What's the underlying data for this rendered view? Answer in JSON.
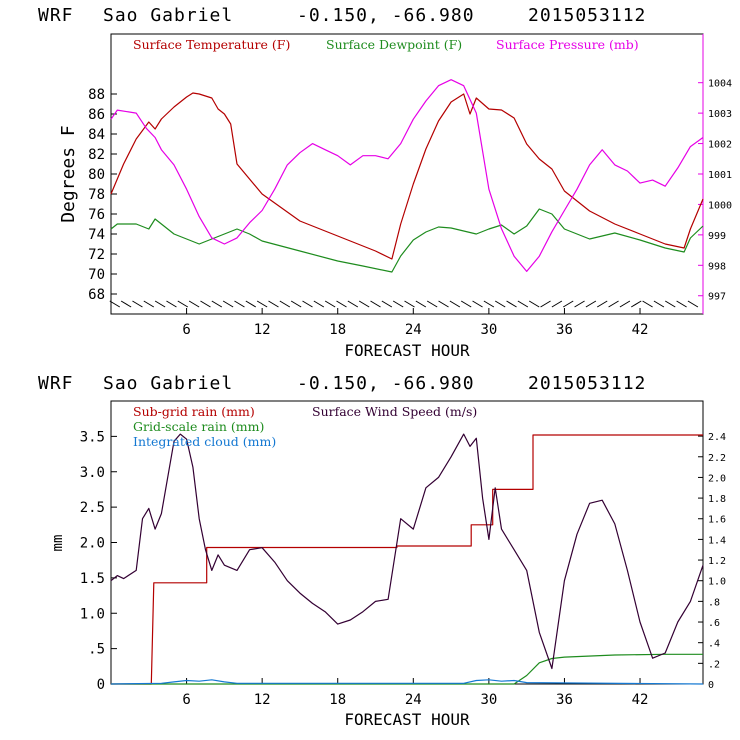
{
  "chart_data": [
    {
      "type": "line",
      "header": {
        "model": "WRF",
        "station": "Sao Gabriel",
        "coords": "-0.150, -66.980",
        "run": "2015053112"
      },
      "xlabel": "FORECAST HOUR",
      "ylabel": "Degrees F",
      "xlim": [
        0,
        47
      ],
      "ylim": [
        66,
        94
      ],
      "ylim_right": [
        996.4,
        1005.6
      ],
      "xticks": [
        "6",
        "12",
        "18",
        "24",
        "30",
        "36",
        "42"
      ],
      "yticks": [
        "68",
        "70",
        "72",
        "74",
        "76",
        "78",
        "80",
        "82",
        "84",
        "86",
        "88"
      ],
      "yticks_right": [
        "997",
        "998",
        "999",
        "1000",
        "1001",
        "1002",
        "1003",
        "1004"
      ],
      "wind_barbs": "wind barbs along bottom axis",
      "colors": {
        "temperature": "#b40000",
        "dewpoint": "#1e8c1e",
        "pressure": "#e600e6"
      },
      "series": [
        {
          "name": "Surface Temperature (F)",
          "axis": "left",
          "x": [
            0,
            1,
            2,
            3,
            3.5,
            4,
            5,
            6,
            6.5,
            7,
            8,
            8.5,
            9,
            9.5,
            10,
            12,
            15,
            18,
            21,
            22.3,
            23,
            24,
            25,
            26,
            27,
            28,
            28.5,
            29,
            30,
            31,
            32,
            33,
            34,
            35,
            36,
            38,
            40,
            42,
            44,
            45.5,
            46,
            47
          ],
          "values": [
            78,
            81,
            83.5,
            85.2,
            84.5,
            85.5,
            86.7,
            87.7,
            88.1,
            88,
            87.6,
            86.5,
            86,
            85,
            81,
            78,
            75.3,
            73.8,
            72.3,
            71.5,
            75,
            79,
            82.5,
            85.3,
            87.2,
            88,
            86,
            87.6,
            86.5,
            86.4,
            85.6,
            83,
            81.5,
            80.5,
            78.3,
            76.3,
            75,
            74,
            73,
            72.6,
            74.5,
            77.5
          ]
        },
        {
          "name": "Surface Dewpoint (F)",
          "axis": "left",
          "x": [
            0,
            0.5,
            2,
            3,
            3.5,
            4,
            5,
            6,
            7,
            8,
            9,
            10,
            11,
            12,
            15,
            18,
            20,
            22.3,
            23,
            24,
            25,
            26,
            27,
            28,
            29,
            30,
            31,
            32,
            33,
            34,
            35,
            36,
            38,
            40,
            42,
            44,
            45.5,
            46,
            47
          ],
          "values": [
            74.5,
            75,
            75,
            74.5,
            75.5,
            75,
            74,
            73.5,
            73,
            73.5,
            74,
            74.5,
            74,
            73.3,
            72.3,
            71.3,
            70.8,
            70.2,
            71.8,
            73.4,
            74.2,
            74.7,
            74.6,
            74.3,
            74,
            74.5,
            74.9,
            74,
            74.8,
            76.5,
            76,
            74.5,
            73.5,
            74.1,
            73.4,
            72.6,
            72.2,
            73.6,
            74.8
          ]
        },
        {
          "name": "Surface Pressure (mb)",
          "axis": "right",
          "x": [
            0,
            0.5,
            2,
            2.8,
            3.5,
            4,
            5,
            6,
            7,
            8,
            9,
            10,
            11,
            12,
            13,
            14,
            15,
            16,
            17,
            18,
            19,
            20,
            21,
            22,
            23,
            24,
            25,
            26,
            27,
            28,
            29,
            30,
            31,
            32,
            33,
            34,
            35,
            36,
            37,
            38,
            39,
            40,
            41,
            42,
            43,
            44,
            45,
            46,
            47
          ],
          "values": [
            1002.8,
            1003.1,
            1003,
            1002.5,
            1002.2,
            1001.8,
            1001.3,
            1000.5,
            999.6,
            998.9,
            998.7,
            998.9,
            999.4,
            999.8,
            1000.5,
            1001.3,
            1001.7,
            1002,
            1001.8,
            1001.6,
            1001.3,
            1001.6,
            1001.6,
            1001.5,
            1002,
            1002.8,
            1003.4,
            1003.9,
            1004.1,
            1003.9,
            1003,
            1000.5,
            999.2,
            998.3,
            997.8,
            998.3,
            999.1,
            999.8,
            1000.5,
            1001.3,
            1001.8,
            1001.3,
            1001.1,
            1000.7,
            1000.8,
            1000.6,
            1001.2,
            1001.9,
            1002.2
          ]
        }
      ]
    },
    {
      "type": "line",
      "header": {
        "model": "WRF",
        "station": "Sao Gabriel",
        "coords": "-0.150, -66.980",
        "run": "2015053112"
      },
      "xlabel": "FORECAST HOUR",
      "ylabel": "mm",
      "xlim": [
        0,
        47
      ],
      "ylim": [
        0,
        4.0
      ],
      "ylim_right": [
        0,
        2.74
      ],
      "xticks": [
        "6",
        "12",
        "18",
        "24",
        "30",
        "36",
        "42"
      ],
      "yticks": [
        "0",
        ".5",
        "1.0",
        "1.5",
        "2.0",
        "2.5",
        "3.0",
        "3.5"
      ],
      "yticks_right": [
        "0",
        ".2",
        ".4",
        ".6",
        ".8",
        "1.0",
        "1.2",
        "1.4",
        "1.6",
        "1.8",
        "2.0",
        "2.2",
        "2.4"
      ],
      "colors": {
        "subgrid": "#b40000",
        "gridscale": "#1e8c1e",
        "cloud": "#1478d2",
        "wind": "#330033"
      },
      "series": [
        {
          "name": "Sub-grid rain (mm)",
          "axis": "left",
          "step": true,
          "x": [
            0,
            3.2,
            3.4,
            7.6,
            7.6,
            22.7,
            22.7,
            28.6,
            28.6,
            30.3,
            30.3,
            33.5,
            33.5,
            47
          ],
          "values": [
            0,
            0,
            1.43,
            1.43,
            1.93,
            1.93,
            1.95,
            1.95,
            2.25,
            2.25,
            2.75,
            2.75,
            3.52,
            3.52
          ]
        },
        {
          "name": "Grid-scale rain (mm)",
          "axis": "left",
          "x": [
            0,
            32,
            33,
            34,
            35,
            36,
            40,
            44,
            47
          ],
          "values": [
            0,
            0,
            0.12,
            0.3,
            0.36,
            0.38,
            0.41,
            0.42,
            0.42
          ]
        },
        {
          "name": "Integrated cloud (mm)",
          "axis": "left",
          "x": [
            0,
            4,
            5,
            6,
            7,
            8,
            9,
            10,
            28,
            29,
            30,
            31,
            32,
            33,
            47
          ],
          "values": [
            0,
            0.01,
            0.03,
            0.05,
            0.04,
            0.06,
            0.03,
            0.01,
            0.01,
            0.05,
            0.06,
            0.04,
            0.05,
            0.02,
            0
          ]
        },
        {
          "name": "Surface Wind Speed (m/s)",
          "axis": "right",
          "x": [
            0,
            0.5,
            1,
            2,
            2.5,
            3,
            3.5,
            4,
            5,
            5.5,
            6,
            6.5,
            7,
            7.5,
            8,
            8.5,
            9,
            10,
            11,
            12,
            13,
            14,
            15,
            16,
            17,
            18,
            19,
            20,
            21,
            22,
            23,
            24,
            25,
            26,
            27,
            28,
            28.5,
            29,
            29.5,
            30,
            30.5,
            31,
            32,
            33,
            34,
            35,
            36,
            37,
            38,
            39,
            40,
            41,
            42,
            43,
            44,
            45,
            46,
            47
          ],
          "values": [
            1,
            1.05,
            1.02,
            1.1,
            1.6,
            1.7,
            1.5,
            1.65,
            2.35,
            2.42,
            2.37,
            2.1,
            1.6,
            1.3,
            1.1,
            1.25,
            1.15,
            1.1,
            1.3,
            1.32,
            1.18,
            1.0,
            0.88,
            0.78,
            0.7,
            0.58,
            0.62,
            0.7,
            0.8,
            0.82,
            1.6,
            1.5,
            1.9,
            2.0,
            2.2,
            2.42,
            2.3,
            2.38,
            1.8,
            1.4,
            1.9,
            1.5,
            1.3,
            1.1,
            0.5,
            0.15,
            1.0,
            1.45,
            1.75,
            1.78,
            1.55,
            1.1,
            0.6,
            0.25,
            0.3,
            0.6,
            0.8,
            1.15
          ]
        }
      ]
    }
  ]
}
